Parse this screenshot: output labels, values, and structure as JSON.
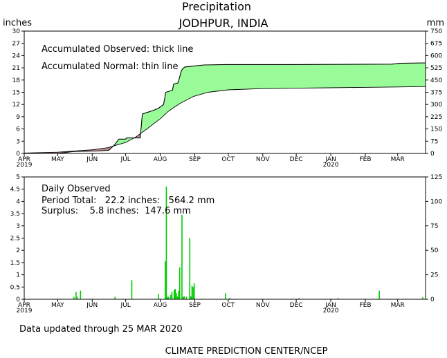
{
  "title": "Precipitation",
  "subtitle": "JODHPUR, INDIA",
  "left_unit": "inches",
  "right_unit": "mm",
  "footer_updated": "Data updated through 25 MAR 2020",
  "footer_credit": "CLIMATE PREDICTION CENTER/NCEP",
  "chart_data": [
    {
      "type": "area",
      "annotations": [
        "Accumulated Observed: thick line",
        "Accumulated Normal: thin line"
      ],
      "x_categories": [
        "APR",
        "MAY",
        "JUN",
        "JUL",
        "AUG",
        "SEP",
        "OCT",
        "NOV",
        "DEC",
        "JAN",
        "FEB",
        "MAR"
      ],
      "x_year_labels": [
        {
          "month": "APR",
          "year": "2019"
        },
        {
          "month": "JAN",
          "year": "2020"
        }
      ],
      "ylim_inches": [
        0,
        30
      ],
      "y_ticks_inches": [
        0,
        3,
        6,
        9,
        12,
        15,
        18,
        21,
        24,
        27,
        30
      ],
      "y_ticks_mm": [
        0,
        75,
        150,
        225,
        300,
        375,
        450,
        525,
        600,
        675,
        750
      ],
      "colors": {
        "surplus": "#98fb98",
        "deficit": "#bc8f8f"
      },
      "series": [
        {
          "name": "Accumulated Observed",
          "x_day": [
            0,
            30,
            45,
            66,
            76,
            81,
            85,
            91,
            92,
            104,
            106,
            112,
            115,
            120,
            125,
            127,
            133,
            134,
            138,
            141,
            142,
            144,
            158,
            161,
            180,
            240,
            330,
            337,
            360
          ],
          "y": [
            0.0,
            0.0,
            0.5,
            0.6,
            0.8,
            2.1,
            3.5,
            3.5,
            3.8,
            3.8,
            9.7,
            10.2,
            10.5,
            11.0,
            12.0,
            15.0,
            15.5,
            17.0,
            17.3,
            20.3,
            20.7,
            21.2,
            21.6,
            21.7,
            21.8,
            21.8,
            21.9,
            22.1,
            22.2
          ]
        },
        {
          "name": "Accumulated Normal",
          "x_day": [
            0,
            30,
            61,
            75,
            91,
            100,
            110,
            122,
            130,
            140,
            152,
            165,
            183,
            213,
            244,
            274,
            305,
            335,
            360
          ],
          "y": [
            0.1,
            0.3,
            0.9,
            1.4,
            2.7,
            4.0,
            6.0,
            8.5,
            10.5,
            12.3,
            14.0,
            15.0,
            15.6,
            15.9,
            16.0,
            16.1,
            16.2,
            16.3,
            16.4
          ]
        }
      ]
    },
    {
      "type": "bar",
      "annotations": [
        "Daily Observed",
        "Period Total:   22.2 inches:   564.2 mm",
        "Surplus:    5.8 inches:  147.6 mm"
      ],
      "x_categories": [
        "APR",
        "MAY",
        "JUN",
        "JUL",
        "AUG",
        "SEP",
        "OCT",
        "NOV",
        "DEC",
        "JAN",
        "FEB",
        "MAR"
      ],
      "x_year_labels": [
        {
          "month": "APR",
          "year": "2019"
        },
        {
          "month": "JAN",
          "year": "2020"
        }
      ],
      "ylim_inches": [
        0,
        5
      ],
      "y_ticks_inches": [
        "0",
        "0.5",
        "1",
        "1.5",
        "2",
        "2.5",
        "3",
        "3.5",
        "4",
        "4.5",
        "5"
      ],
      "y_ticks_mm": [
        0,
        25,
        50,
        75,
        100,
        125
      ],
      "color": "#00cc00",
      "x_day": [
        44,
        46,
        47,
        50,
        81,
        96,
        120,
        126,
        127,
        128,
        129,
        131,
        132,
        134,
        135,
        136,
        137,
        138,
        139,
        141,
        142,
        143,
        145,
        148,
        149,
        150,
        151,
        152,
        180,
        184,
        246,
        281,
        318,
        357
      ],
      "values": [
        0.1,
        0.3,
        0.1,
        0.35,
        0.1,
        0.78,
        0.22,
        1.55,
        4.6,
        0.1,
        0.1,
        0.18,
        0.3,
        0.38,
        0.42,
        0.25,
        0.12,
        0.35,
        1.3,
        3.45,
        0.1,
        0.12,
        0.1,
        2.5,
        0.12,
        0.55,
        0.5,
        0.65,
        0.25,
        0.06,
        0.05,
        0.05,
        0.35,
        0.08
      ]
    }
  ]
}
